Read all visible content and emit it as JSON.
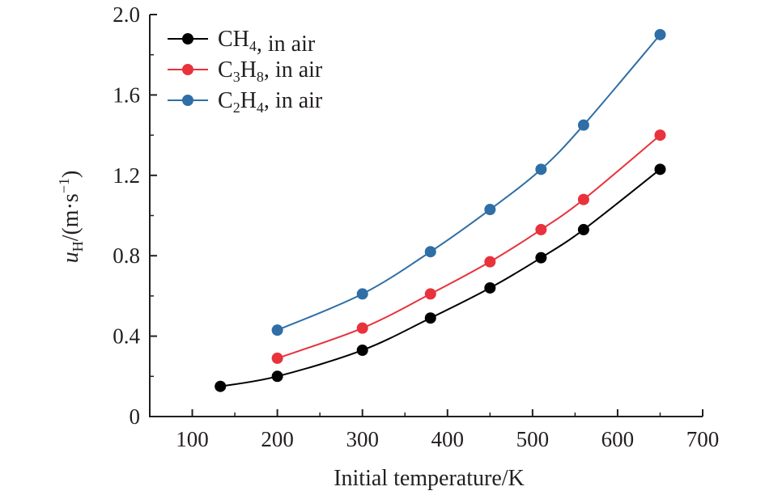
{
  "chart_data": {
    "type": "line",
    "xlabel": "Initial temperature/K",
    "ylabel": "u_H/(m·s^-1)",
    "xlim": [
      50,
      700
    ],
    "ylim": [
      0,
      2.0
    ],
    "xticks": [
      "100",
      "200",
      "300",
      "400",
      "500",
      "600",
      "700"
    ],
    "yticks": [
      "0",
      "0.4",
      "0.8",
      "1.2",
      "1.6",
      "2.0"
    ],
    "grid": false,
    "legend_position": "top-left",
    "series": [
      {
        "name": "CH4, in air",
        "legend": {
          "base1": "CH",
          "sub1": "4",
          "base2": "",
          "sub2": "",
          "tail": ", in air"
        },
        "color": "#000000",
        "x": [
          133,
          200,
          300,
          380,
          450,
          510,
          560,
          650
        ],
        "y": [
          0.15,
          0.2,
          0.33,
          0.49,
          0.64,
          0.79,
          0.93,
          1.23
        ]
      },
      {
        "name": "C3H8, in air",
        "legend": {
          "base1": "C",
          "sub1": "3",
          "base2": "H",
          "sub2": "8",
          "tail": ", in air"
        },
        "color": "#e8323c",
        "x": [
          200,
          300,
          380,
          450,
          510,
          560,
          650
        ],
        "y": [
          0.29,
          0.44,
          0.61,
          0.77,
          0.93,
          1.08,
          1.4
        ]
      },
      {
        "name": "C2H4, in air",
        "legend": {
          "base1": "C",
          "sub1": "2",
          "base2": "H",
          "sub2": "4",
          "tail": ", in air"
        },
        "color": "#2f6ea6",
        "x": [
          200,
          300,
          380,
          450,
          510,
          560,
          650
        ],
        "y": [
          0.43,
          0.61,
          0.82,
          1.03,
          1.23,
          1.45,
          1.9
        ]
      }
    ]
  },
  "ylabel_parts": {
    "u": "u",
    "sub": "H",
    "unit": "/(m·s",
    "sup": "−1",
    "close": ")"
  }
}
